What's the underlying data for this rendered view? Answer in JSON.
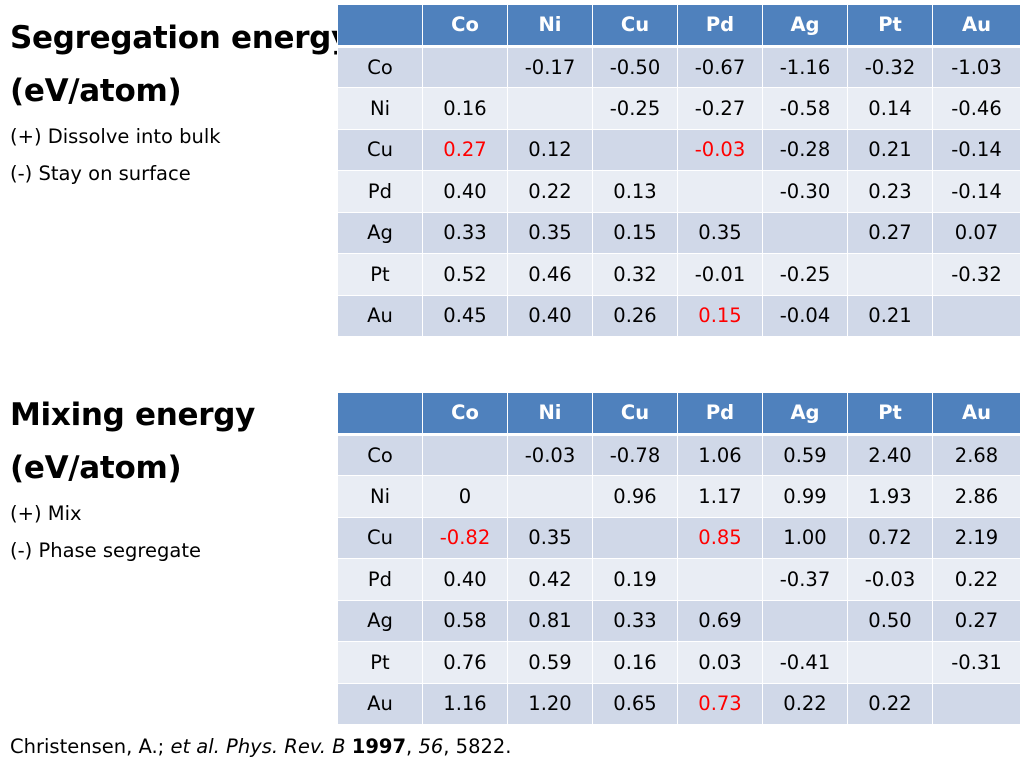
{
  "segregation": {
    "title1": "Segregation energy",
    "title2": "(eV/atom)",
    "note1": "(+) Dissolve into bulk",
    "note2": "(-) Stay on surface",
    "columns": [
      "",
      "Co",
      "Ni",
      "Cu",
      "Pd",
      "Ag",
      "Pt",
      "Au"
    ],
    "rows": [
      [
        "Co",
        "",
        "-0.17",
        "-0.50",
        "-0.67",
        "-1.16",
        "-0.32",
        "-1.03"
      ],
      [
        "Ni",
        "0.16",
        "",
        "-0.25",
        "-0.27",
        "-0.58",
        "0.14",
        "-0.46"
      ],
      [
        "Cu",
        "0.27",
        "0.12",
        "",
        "-0.03",
        "-0.28",
        "0.21",
        "-0.14"
      ],
      [
        "Pd",
        "0.40",
        "0.22",
        "0.13",
        "",
        "-0.30",
        "0.23",
        "-0.14"
      ],
      [
        "Ag",
        "0.33",
        "0.35",
        "0.15",
        "0.35",
        "",
        "0.27",
        "0.07"
      ],
      [
        "Pt",
        "0.52",
        "0.46",
        "0.32",
        "-0.01",
        "-0.25",
        "",
        "-0.32"
      ],
      [
        "Au",
        "0.45",
        "0.40",
        "0.26",
        "0.15",
        "-0.04",
        "0.21",
        ""
      ]
    ],
    "highlight_color": "#ff0000"
  },
  "mixing": {
    "title1": "Mixing energy",
    "title2": "(eV/atom)",
    "note1": "(+) Mix",
    "note2": "(-) Phase segregate",
    "columns": [
      "",
      "Co",
      "Ni",
      "Cu",
      "Pd",
      "Ag",
      "Pt",
      "Au"
    ],
    "rows": [
      [
        "Co",
        "",
        "-0.03",
        "-0.78",
        "1.06",
        "0.59",
        "2.40",
        "2.68"
      ],
      [
        "Ni",
        "0",
        "",
        "0.96",
        "1.17",
        "0.99",
        "1.93",
        "2.86"
      ],
      [
        "Cu",
        "-0.82",
        "0.35",
        "",
        "0.85",
        "1.00",
        "0.72",
        "2.19"
      ],
      [
        "Pd",
        "0.40",
        "0.42",
        "0.19",
        "",
        "-0.37",
        "-0.03",
        "0.22"
      ],
      [
        "Ag",
        "0.58",
        "0.81",
        "0.33",
        "0.69",
        "",
        "0.50",
        "0.27"
      ],
      [
        "Pt",
        "0.76",
        "0.59",
        "0.16",
        "0.03",
        "-0.41",
        "",
        "-0.31"
      ],
      [
        "Au",
        "1.16",
        "1.20",
        "0.65",
        "0.73",
        "0.22",
        "0.22",
        ""
      ]
    ],
    "highlight_color": "#ff0000"
  },
  "citation": {
    "authors": "Christensen, A.; ",
    "etal_journal": "et al. Phys. Rev. B",
    "space1": " ",
    "year": "1997",
    "sep1": ", ",
    "volume": "56",
    "sep2": ", ",
    "pages": "5822."
  },
  "colors": {
    "header_bg": "#4f81bd",
    "row_dark": "#d0d8e8",
    "row_light": "#e9edf4"
  }
}
